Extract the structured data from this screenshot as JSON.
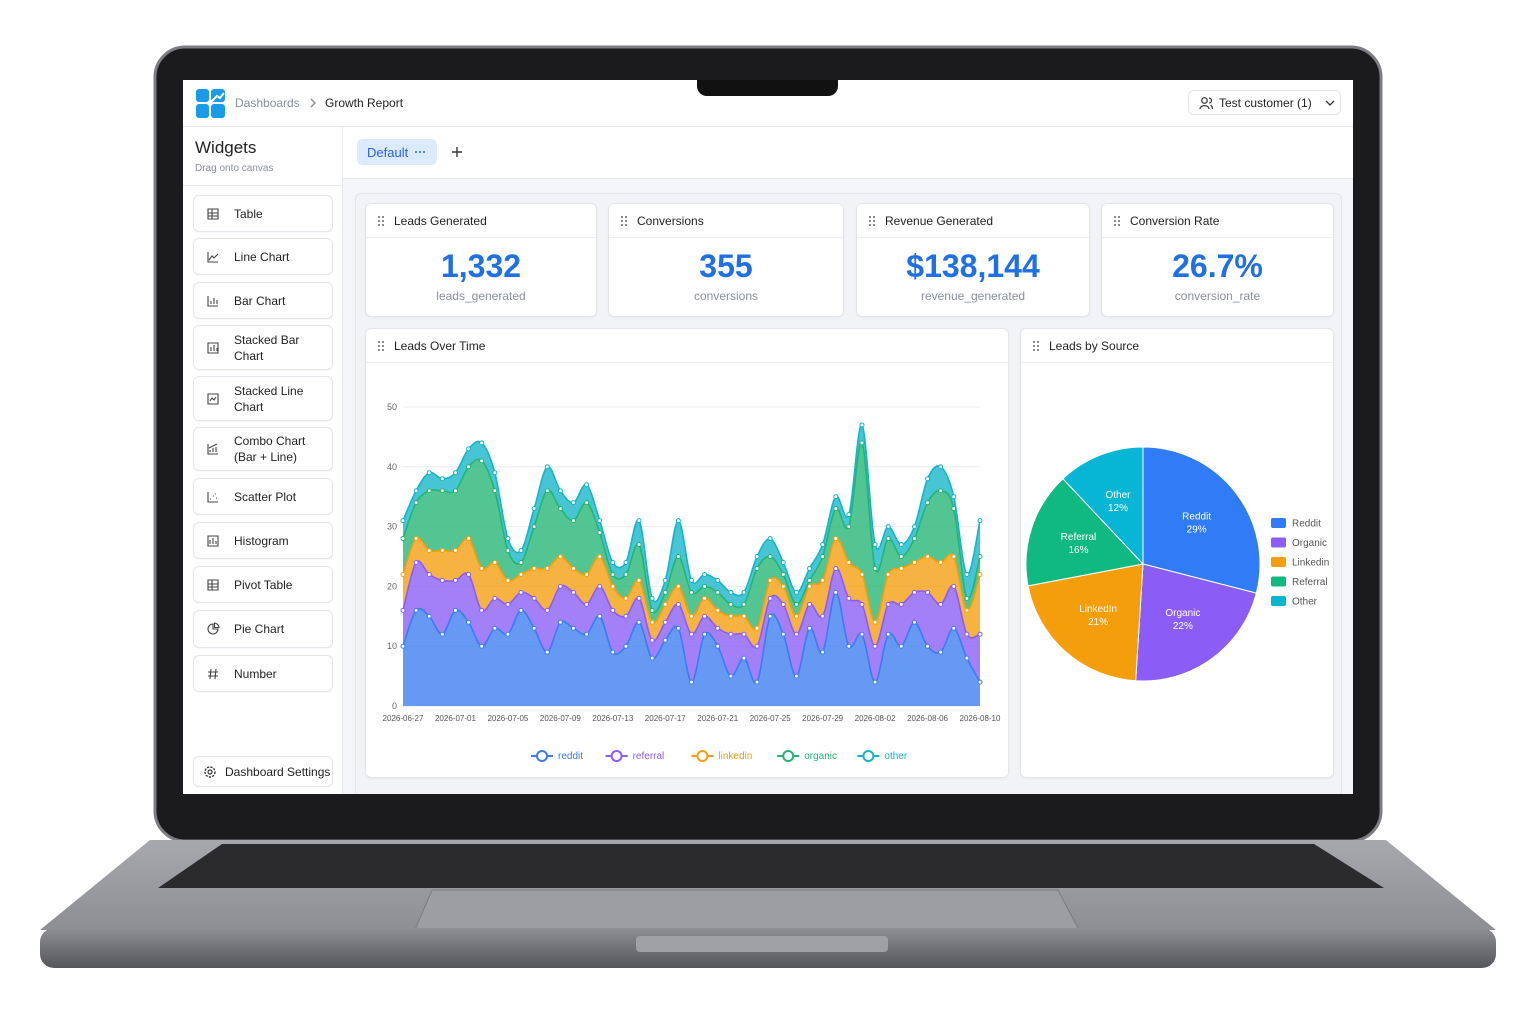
{
  "header": {
    "breadcrumb": [
      "Dashboards",
      "Growth Report"
    ],
    "account": "Test customer (1)"
  },
  "sidebar": {
    "title": "Widgets",
    "subtitle": "Drag onto canvas",
    "widgets": [
      "Table",
      "Line Chart",
      "Bar Chart",
      "Stacked Bar Chart",
      "Stacked Line Chart",
      "Combo Chart (Bar + Line)",
      "Scatter Plot",
      "Histogram",
      "Pivot Table",
      "Pie Chart",
      "Number"
    ],
    "settings": "Dashboard Settings"
  },
  "tabs": {
    "items": [
      "Default"
    ]
  },
  "kpis": [
    {
      "title": "Leads Generated",
      "value": "1,332",
      "metric": "leads_generated"
    },
    {
      "title": "Conversions",
      "value": "355",
      "metric": "conversions"
    },
    {
      "title": "Revenue Generated",
      "value": "$138,144",
      "metric": "revenue_generated"
    },
    {
      "title": "Conversion Rate",
      "value": "26.7%",
      "metric": "conversion_rate"
    }
  ],
  "chart_data": [
    {
      "type": "area",
      "stacked": true,
      "title": "Leads Over Time",
      "categories": [
        "2026-06-27",
        null,
        null,
        null,
        "2026-07-01",
        null,
        null,
        null,
        "2026-07-05",
        null,
        null,
        null,
        "2026-07-09",
        null,
        null,
        null,
        "2026-07-13",
        null,
        null,
        null,
        "2026-07-17",
        null,
        null,
        null,
        "2026-07-21",
        null,
        null,
        null,
        "2026-07-25",
        null,
        null,
        null,
        "2026-07-29",
        null,
        null,
        null,
        "2026-08-02",
        null,
        null,
        null,
        "2026-08-06",
        null,
        null,
        null,
        "2026-08-10"
      ],
      "ylim": [
        0,
        50
      ],
      "yticks": [
        0,
        10,
        20,
        30,
        40,
        50
      ],
      "grid": true,
      "legend": "bottom",
      "series": [
        {
          "name": "reddit",
          "color": "#3b7cf0",
          "values": [
            10,
            16,
            15,
            12,
            16,
            14,
            10,
            13,
            12,
            16,
            13,
            9,
            14,
            13,
            12,
            15,
            9,
            10,
            14,
            8,
            11,
            13,
            4,
            12,
            10,
            5,
            8,
            4,
            15,
            12,
            5,
            13,
            9,
            19,
            10,
            12,
            4,
            12,
            10,
            14,
            10,
            9,
            13,
            8,
            4
          ]
        },
        {
          "name": "referral",
          "color": "#8b5cf6",
          "values": [
            6,
            8,
            7,
            9,
            5,
            8,
            6,
            5,
            5,
            3,
            5,
            7,
            6,
            6,
            5,
            5,
            7,
            5,
            4,
            3,
            3,
            4,
            8,
            3,
            3,
            7,
            4,
            6,
            3,
            5,
            7,
            4,
            6,
            4,
            8,
            5,
            6,
            5,
            7,
            5,
            9,
            8,
            7,
            4,
            8
          ]
        },
        {
          "name": "linkedin",
          "color": "#f59e0b",
          "values": [
            6,
            4,
            4,
            5,
            5,
            6,
            7,
            6,
            4,
            3,
            5,
            7,
            5,
            4,
            5,
            5,
            4,
            3,
            3,
            3,
            3,
            3,
            3,
            3,
            3,
            3,
            3,
            3,
            3,
            3,
            3,
            3,
            6,
            5,
            6,
            5,
            4,
            5,
            6,
            5,
            6,
            7,
            5,
            4,
            10
          ]
        },
        {
          "name": "organic",
          "color": "#22b573",
          "values": [
            6,
            6,
            10,
            10,
            10,
            12,
            18,
            12,
            5,
            2,
            7,
            13,
            8,
            8,
            12,
            4,
            2,
            4,
            6,
            2,
            2,
            5,
            4,
            2,
            3,
            2,
            2,
            10,
            4,
            2,
            2,
            1,
            4,
            5,
            6,
            22,
            9,
            6,
            2,
            4,
            9,
            12,
            8,
            2,
            3
          ]
        },
        {
          "name": "other",
          "color": "#13b5c9",
          "values": [
            3,
            2,
            3,
            2,
            3,
            3,
            3,
            3,
            2,
            2,
            3,
            4,
            3,
            3,
            3,
            2,
            2,
            2,
            4,
            2,
            2,
            6,
            2,
            2,
            2,
            2,
            2,
            2,
            3,
            2,
            2,
            2,
            2,
            2,
            2,
            3,
            4,
            2,
            2,
            2,
            4,
            4,
            2,
            4,
            6
          ]
        }
      ]
    },
    {
      "type": "pie",
      "title": "Leads by Source",
      "categories": [
        "Reddit",
        "Organic",
        "LinkedIn",
        "Referral",
        "Other"
      ],
      "values": [
        29,
        22,
        21,
        16,
        12
      ],
      "value_labels": [
        "29%",
        "22%",
        "21%",
        "16%",
        "12%"
      ],
      "colors": [
        "#2f7cf6",
        "#8b5cf6",
        "#f59e0b",
        "#10b981",
        "#06b6d4"
      ],
      "legend": [
        "Reddit",
        "Organic",
        "Linkedin",
        "Referral",
        "Other"
      ],
      "legend_position": "right"
    }
  ]
}
